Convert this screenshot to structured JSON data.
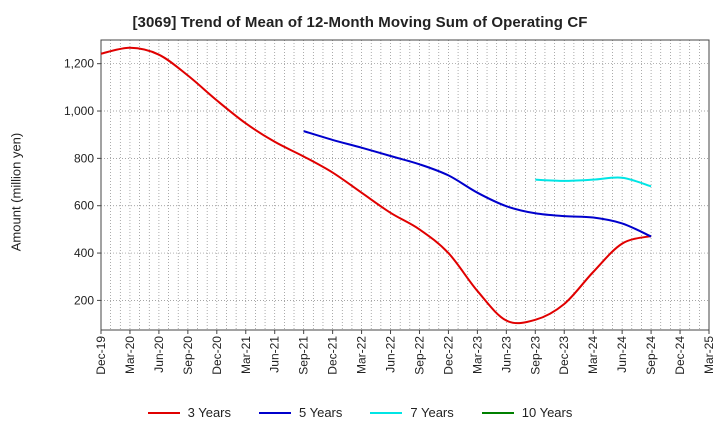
{
  "chart_data": {
    "type": "line",
    "title": "[3069]  Trend of Mean of 12-Month Moving Sum of Operating CF",
    "xlabel": "",
    "ylabel": "Amount (million yen)",
    "ylim": [
      75,
      1300
    ],
    "yticks": [
      200,
      400,
      600,
      800,
      "1,000",
      "1,200"
    ],
    "ytick_values": [
      200,
      400,
      600,
      800,
      1000,
      1200
    ],
    "x_ticks": [
      "Dec-19",
      "Mar-20",
      "Jun-20",
      "Sep-20",
      "Dec-20",
      "Mar-21",
      "Jun-21",
      "Sep-21",
      "Dec-21",
      "Mar-22",
      "Jun-22",
      "Sep-22",
      "Dec-22",
      "Mar-23",
      "Jun-23",
      "Sep-23",
      "Dec-23",
      "Mar-24",
      "Jun-24",
      "Sep-24",
      "Dec-24",
      "Mar-25"
    ],
    "grid": true,
    "legend_position": "bottom",
    "series": [
      {
        "name": "3 Years",
        "color": "#e00000",
        "x": [
          "Dec-19",
          "Mar-20",
          "Jun-20",
          "Sep-20",
          "Dec-20",
          "Mar-21",
          "Jun-21",
          "Sep-21",
          "Dec-21",
          "Mar-22",
          "Jun-22",
          "Sep-22",
          "Dec-22",
          "Mar-23",
          "Jun-23",
          "Sep-23",
          "Dec-23",
          "Mar-24",
          "Jun-24",
          "Sep-24"
        ],
        "values": [
          1242,
          1267,
          1238,
          1150,
          1045,
          948,
          870,
          808,
          740,
          655,
          570,
          500,
          400,
          240,
          115,
          118,
          185,
          320,
          440,
          472
        ]
      },
      {
        "name": "5 Years",
        "color": "#0000cc",
        "x": [
          "Sep-21",
          "Dec-21",
          "Mar-22",
          "Jun-22",
          "Sep-22",
          "Dec-22",
          "Mar-23",
          "Jun-23",
          "Sep-23",
          "Dec-23",
          "Mar-24",
          "Jun-24",
          "Sep-24"
        ],
        "values": [
          915,
          878,
          845,
          810,
          775,
          728,
          655,
          598,
          568,
          556,
          550,
          525,
          470
        ]
      },
      {
        "name": "7 Years",
        "color": "#00e5e5",
        "x": [
          "Sep-23",
          "Dec-23",
          "Mar-24",
          "Jun-24",
          "Sep-24"
        ],
        "values": [
          710,
          705,
          710,
          718,
          682
        ]
      },
      {
        "name": "10 Years",
        "color": "#008000",
        "x": [],
        "values": []
      }
    ]
  }
}
